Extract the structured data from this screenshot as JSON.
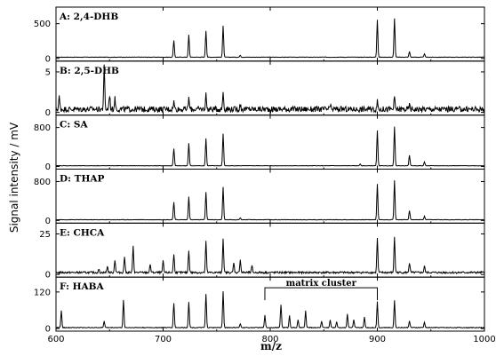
{
  "chart_data": {
    "type": "line",
    "xlabel": "m/z",
    "ylabel": "Signal intensity / mV",
    "xlim": [
      600,
      1000
    ],
    "xticks": [
      600,
      700,
      800,
      900,
      1000
    ],
    "grid": false,
    "panels": [
      {
        "label": "A: 2,4-DHB",
        "ylim": [
          0,
          700
        ],
        "yticks": [
          0,
          500
        ],
        "baseline": 18,
        "noise": 3,
        "peaks": [
          [
            710,
            240
          ],
          [
            724,
            320
          ],
          [
            740,
            380
          ],
          [
            756,
            450
          ],
          [
            772,
            30
          ],
          [
            900,
            540
          ],
          [
            916,
            560
          ],
          [
            930,
            80
          ],
          [
            944,
            50
          ]
        ]
      },
      {
        "label": "B: 2,5-DHB",
        "ylim": [
          0,
          6
        ],
        "yticks": [
          0,
          5
        ],
        "baseline": 0.4,
        "noise": 0.35,
        "peaks": [
          [
            603,
            1.5
          ],
          [
            645,
            5.2
          ],
          [
            650,
            1.8
          ],
          [
            655,
            1.3
          ],
          [
            710,
            0.9
          ],
          [
            724,
            1.3
          ],
          [
            740,
            1.8
          ],
          [
            756,
            2.1
          ],
          [
            772,
            0.6
          ],
          [
            856,
            0.4
          ],
          [
            900,
            0.9
          ],
          [
            916,
            1.3
          ],
          [
            930,
            0.5
          ]
        ]
      },
      {
        "label": "C: SA",
        "ylim": [
          0,
          1000
        ],
        "yticks": [
          0,
          800
        ],
        "baseline": 15,
        "noise": 4,
        "peaks": [
          [
            710,
            350
          ],
          [
            724,
            460
          ],
          [
            740,
            560
          ],
          [
            756,
            660
          ],
          [
            884,
            40
          ],
          [
            900,
            720
          ],
          [
            916,
            800
          ],
          [
            930,
            210
          ],
          [
            944,
            80
          ]
        ]
      },
      {
        "label": "D: THAP",
        "ylim": [
          0,
          1000
        ],
        "yticks": [
          0,
          800
        ],
        "baseline": 15,
        "noise": 4,
        "peaks": [
          [
            710,
            360
          ],
          [
            724,
            470
          ],
          [
            740,
            570
          ],
          [
            756,
            670
          ],
          [
            772,
            40
          ],
          [
            900,
            730
          ],
          [
            916,
            810
          ],
          [
            930,
            190
          ],
          [
            944,
            70
          ]
        ]
      },
      {
        "label": "E: CHCA",
        "ylim": [
          0,
          30
        ],
        "yticks": [
          0,
          25
        ],
        "baseline": 1.2,
        "noise": 0.6,
        "peaks": [
          [
            640,
            2
          ],
          [
            648,
            4
          ],
          [
            655,
            8
          ],
          [
            664,
            10
          ],
          [
            672,
            16
          ],
          [
            688,
            5
          ],
          [
            700,
            7
          ],
          [
            710,
            11
          ],
          [
            724,
            14
          ],
          [
            740,
            19
          ],
          [
            756,
            21
          ],
          [
            766,
            6
          ],
          [
            772,
            8
          ],
          [
            783,
            4
          ],
          [
            900,
            21
          ],
          [
            916,
            22
          ],
          [
            930,
            6
          ],
          [
            944,
            4
          ]
        ]
      },
      {
        "label": "F: HABA",
        "ylim": [
          0,
          160
        ],
        "yticks": [
          0,
          120
        ],
        "baseline": 3,
        "noise": 1.2,
        "peaks": [
          [
            605,
            55
          ],
          [
            645,
            22
          ],
          [
            663,
            90
          ],
          [
            710,
            80
          ],
          [
            724,
            85
          ],
          [
            740,
            110
          ],
          [
            756,
            120
          ],
          [
            772,
            12
          ],
          [
            795,
            40
          ],
          [
            810,
            75
          ],
          [
            818,
            40
          ],
          [
            826,
            25
          ],
          [
            833,
            55
          ],
          [
            848,
            22
          ],
          [
            856,
            25
          ],
          [
            862,
            20
          ],
          [
            872,
            45
          ],
          [
            878,
            25
          ],
          [
            888,
            35
          ],
          [
            900,
            85
          ],
          [
            916,
            90
          ],
          [
            930,
            22
          ],
          [
            944,
            18
          ]
        ]
      }
    ],
    "annotations": [
      {
        "text": "matrix cluster",
        "panel": 5,
        "x_start": 795,
        "x_end": 900
      }
    ]
  }
}
